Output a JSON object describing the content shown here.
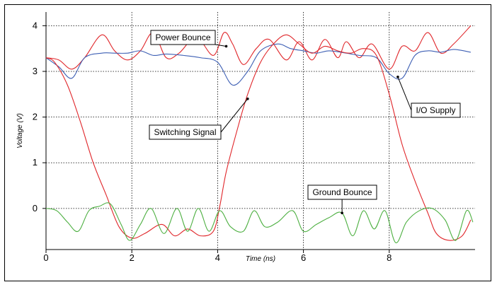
{
  "chart_data": {
    "type": "line",
    "xlabel": "Time (ns)",
    "ylabel": "Voltage (V)",
    "xlim": [
      0,
      10
    ],
    "ylim": [
      -0.9,
      4.3
    ],
    "xticks": [
      "0",
      "2",
      "4",
      "6",
      "8"
    ],
    "yticks": [
      "0",
      "1",
      "2",
      "3",
      "4"
    ],
    "grid": true,
    "series": [
      {
        "name": "Power Bounce",
        "color": "#e0262a",
        "x": [
          0,
          0.3,
          0.6,
          0.9,
          1.3,
          1.6,
          1.9,
          2.2,
          2.5,
          2.8,
          3.1,
          3.5,
          3.9,
          4.15,
          4.35,
          4.6,
          4.9,
          5.2,
          5.6,
          5.9,
          6.2,
          6.5,
          6.8,
          7.0,
          7.3,
          7.6,
          8.0,
          8.3,
          8.6,
          8.9,
          9.2,
          9.5,
          9.9
        ],
        "y": [
          3.3,
          3.25,
          3.05,
          3.3,
          3.8,
          3.45,
          3.25,
          3.45,
          3.85,
          3.3,
          3.4,
          3.75,
          3.35,
          3.85,
          3.6,
          3.15,
          3.5,
          3.7,
          3.25,
          3.65,
          3.25,
          3.7,
          3.3,
          3.65,
          3.3,
          3.6,
          3.05,
          3.55,
          3.45,
          3.85,
          3.4,
          3.6,
          4.0
        ]
      },
      {
        "name": "I/O Supply",
        "color": "#3d5fb4",
        "x": [
          0,
          0.3,
          0.6,
          0.9,
          1.3,
          1.6,
          1.9,
          2.2,
          2.5,
          2.8,
          3.2,
          3.6,
          4.0,
          4.35,
          4.7,
          5.0,
          5.4,
          5.7,
          6.0,
          6.3,
          6.6,
          7.0,
          7.3,
          7.7,
          8.0,
          8.3,
          8.6,
          8.9,
          9.2,
          9.5,
          9.9
        ],
        "y": [
          3.3,
          3.1,
          2.85,
          3.3,
          3.4,
          3.4,
          3.4,
          3.45,
          3.35,
          3.38,
          3.35,
          3.3,
          3.2,
          2.7,
          3.0,
          3.45,
          3.6,
          3.5,
          3.45,
          3.4,
          3.45,
          3.4,
          3.35,
          3.3,
          2.95,
          2.85,
          3.35,
          3.45,
          3.42,
          3.48,
          3.42
        ]
      },
      {
        "name": "Switching Signal",
        "color": "#e0262a",
        "x": [
          0,
          0.2,
          0.5,
          0.8,
          1.1,
          1.4,
          1.7,
          2.0,
          2.3,
          2.7,
          3.0,
          3.3,
          3.6,
          3.9,
          4.05,
          4.2,
          4.45,
          4.7,
          5.0,
          5.3,
          5.6,
          5.9,
          6.2,
          6.5,
          6.8,
          7.1,
          7.4,
          7.7,
          8.0,
          8.3,
          8.6,
          8.9,
          9.1,
          9.4,
          9.7,
          9.9
        ],
        "y": [
          3.3,
          3.2,
          2.7,
          1.9,
          1.0,
          0.3,
          -0.4,
          -0.65,
          -0.55,
          -0.35,
          -0.6,
          -0.45,
          -0.6,
          -0.5,
          0.05,
          0.8,
          1.7,
          2.5,
          3.2,
          3.6,
          3.8,
          3.6,
          3.4,
          3.55,
          3.45,
          3.4,
          3.5,
          3.35,
          2.5,
          1.4,
          0.6,
          -0.1,
          -0.55,
          -0.7,
          -0.6,
          -0.25
        ]
      },
      {
        "name": "Ground Bounce",
        "color": "#4caf40",
        "x": [
          0,
          0.25,
          0.5,
          0.75,
          1.0,
          1.25,
          1.5,
          1.75,
          1.95,
          2.2,
          2.45,
          2.75,
          3.05,
          3.3,
          3.55,
          3.8,
          4.05,
          4.3,
          4.6,
          4.85,
          5.1,
          5.4,
          5.75,
          6.0,
          6.3,
          6.6,
          6.9,
          7.15,
          7.4,
          7.65,
          7.9,
          8.15,
          8.4,
          8.7,
          9.0,
          9.3,
          9.55,
          9.8,
          9.95
        ],
        "y": [
          0,
          -0.05,
          -0.3,
          -0.5,
          -0.05,
          0.05,
          0.1,
          -0.35,
          -0.7,
          -0.35,
          0.0,
          -0.55,
          0.0,
          -0.5,
          0.0,
          -0.5,
          -0.05,
          -0.4,
          -0.5,
          -0.05,
          -0.4,
          -0.3,
          -0.05,
          -0.5,
          -0.35,
          -0.2,
          -0.1,
          -0.6,
          -0.05,
          -0.45,
          -0.05,
          -0.75,
          -0.3,
          -0.05,
          0.0,
          -0.25,
          -0.7,
          -0.05,
          -0.3
        ]
      }
    ],
    "annotations": [
      "Power Bounce",
      "I/O Supply",
      "Switching Signal",
      "Ground Bounce"
    ]
  }
}
